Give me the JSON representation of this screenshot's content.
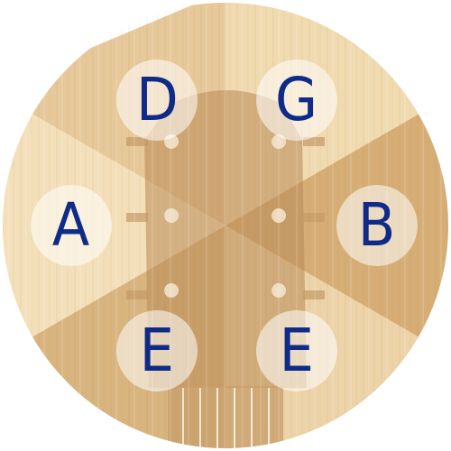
{
  "tuner": {
    "strings": [
      {
        "id": "D",
        "label": "D"
      },
      {
        "id": "G",
        "label": "G"
      },
      {
        "id": "A",
        "label": "A"
      },
      {
        "id": "B",
        "label": "B"
      },
      {
        "id": "E-low",
        "label": "E"
      },
      {
        "id": "E-high",
        "label": "E"
      }
    ]
  },
  "colors": {
    "wood_light": "#f3dfb9",
    "wood_mid": "#e3c493",
    "wood_dark": "#c99f68",
    "headstock": "#b88a55",
    "letter": "#0f2b87"
  }
}
